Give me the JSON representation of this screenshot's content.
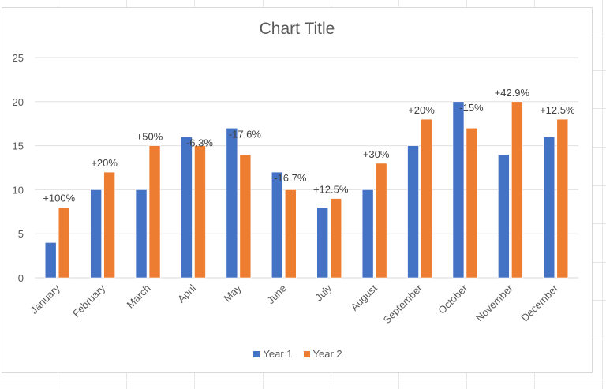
{
  "chart_data": {
    "type": "bar",
    "title": "Chart Title",
    "xlabel": "",
    "ylabel": "",
    "ylim": [
      0,
      25
    ],
    "yticks": [
      0,
      5,
      10,
      15,
      20,
      25
    ],
    "grid": true,
    "legend_position": "bottom",
    "categories": [
      "January",
      "February",
      "March",
      "April",
      "May",
      "June",
      "July",
      "August",
      "September",
      "October",
      "November",
      "December"
    ],
    "series": [
      {
        "name": "Year 1",
        "color": "#4472c4",
        "values": [
          4,
          10,
          10,
          16,
          17,
          12,
          8,
          10,
          15,
          20,
          14,
          16
        ]
      },
      {
        "name": "Year 2",
        "color": "#ed7d31",
        "values": [
          8,
          12,
          15,
          15,
          14,
          10,
          9,
          13,
          18,
          17,
          20,
          18
        ]
      }
    ],
    "annotations": [
      "+100%",
      "+20%",
      "+50%",
      "-6.3%",
      "-17.6%",
      "-16.7%",
      "+12.5%",
      "+30%",
      "+20%",
      "-15%",
      "+42.9%",
      "+12.5%"
    ]
  },
  "legend": {
    "items": [
      {
        "label": "Year 1",
        "color": "#4472c4"
      },
      {
        "label": "Year 2",
        "color": "#ed7d31"
      }
    ]
  }
}
